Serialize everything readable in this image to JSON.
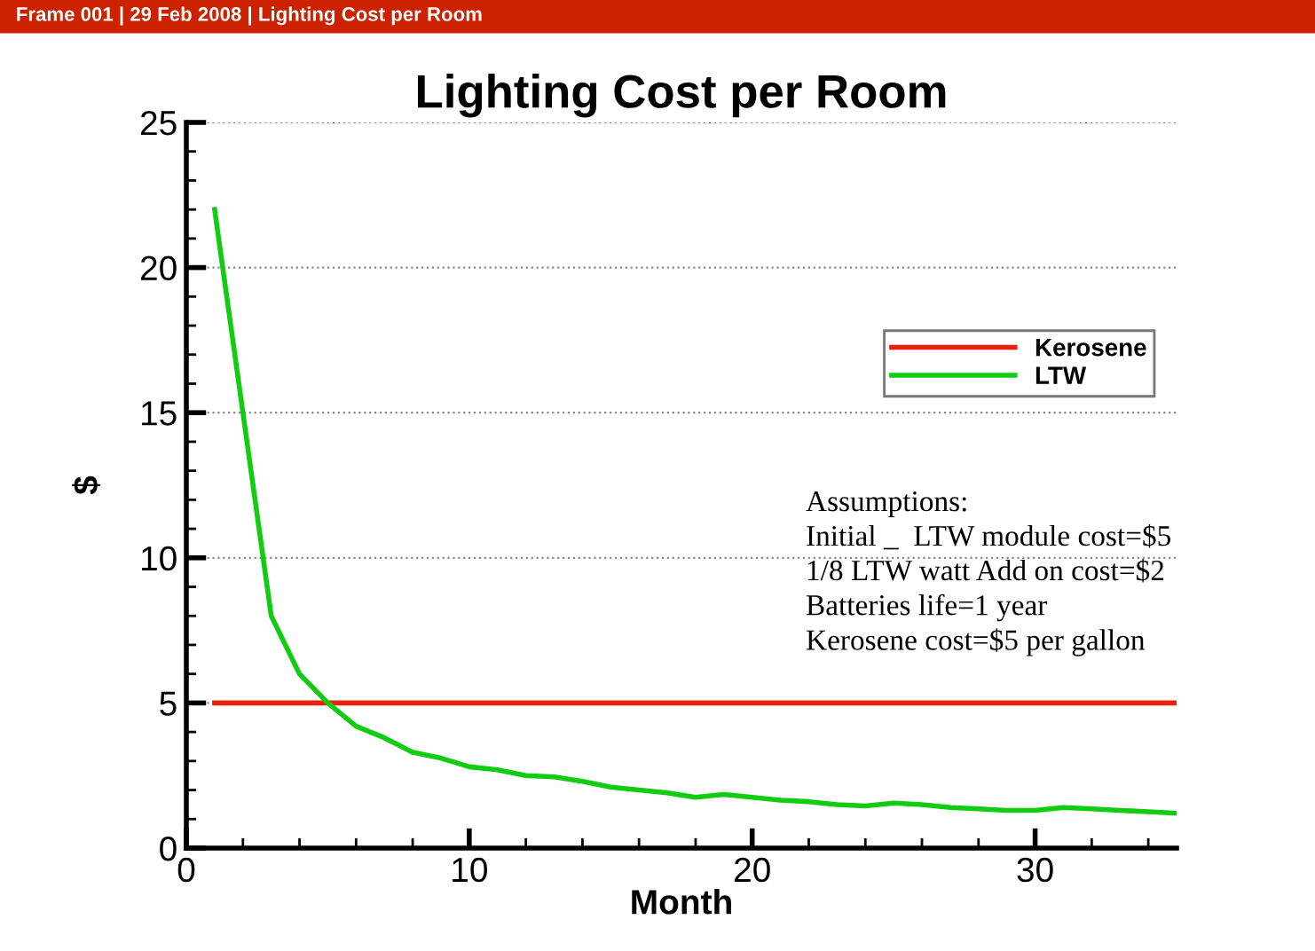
{
  "chart_data": {
    "type": "line",
    "title": "Lighting Cost per Room",
    "xlabel": "Month",
    "ylabel": "$",
    "x": [
      1,
      2,
      3,
      4,
      5,
      6,
      7,
      8,
      9,
      10,
      11,
      12,
      13,
      14,
      15,
      16,
      17,
      18,
      19,
      20,
      21,
      22,
      23,
      24,
      25,
      26,
      27,
      28,
      29,
      30,
      31,
      32,
      33,
      34,
      35
    ],
    "series": [
      {
        "name": "Kerosene",
        "color": "#e8220f",
        "values": [
          5,
          5,
          5,
          5,
          5,
          5,
          5,
          5,
          5,
          5,
          5,
          5,
          5,
          5,
          5,
          5,
          5,
          5,
          5,
          5,
          5,
          5,
          5,
          5,
          5,
          5,
          5,
          5,
          5,
          5,
          5,
          5,
          5,
          5,
          5
        ]
      },
      {
        "name": "LTW",
        "color": "#11cc11",
        "values": [
          22,
          15,
          8,
          6,
          5,
          4.2,
          3.8,
          3.3,
          3.1,
          2.8,
          2.7,
          2.5,
          2.45,
          2.3,
          2.1,
          2.0,
          1.9,
          1.75,
          1.85,
          1.75,
          1.65,
          1.6,
          1.5,
          1.45,
          1.55,
          1.5,
          1.4,
          1.35,
          1.3,
          1.3,
          1.4,
          1.35,
          1.3,
          1.25,
          1.2
        ]
      }
    ],
    "xlim": [
      0,
      35
    ],
    "xticks": [
      0,
      10,
      20,
      30
    ],
    "ylim": [
      0,
      25
    ],
    "yticks": [
      0,
      5,
      10,
      15,
      20,
      25
    ],
    "grid": "y",
    "legend": "top right",
    "line_style": "solid",
    "annotations": [
      "Frame 001 | 29 Feb 2008 | Lighting Cost per Room",
      "Assumptions:",
      "Initial _  LTW module cost=$5",
      "1/8 LTW watt Add on cost=$2",
      "Batteries life=1 year",
      "Kerosene cost=$5 per gallon"
    ]
  }
}
